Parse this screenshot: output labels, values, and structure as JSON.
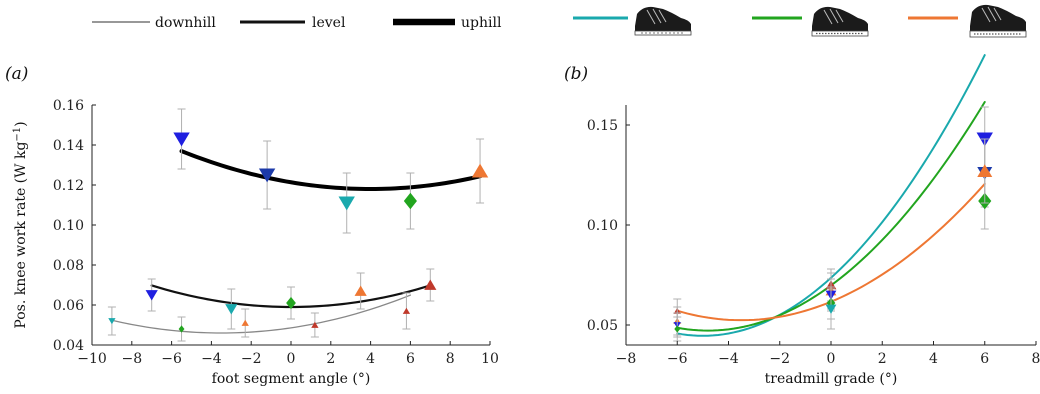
{
  "legend_terrain": [
    {
      "label": "downhill",
      "color": "#777777",
      "width": 1.5
    },
    {
      "label": "level",
      "color": "#111111",
      "width": 3
    },
    {
      "label": "uphill",
      "color": "#000000",
      "width": 6.5
    }
  ],
  "legend_shoes": [
    {
      "color": "#1aa9ad",
      "icon": "shoe-icon"
    },
    {
      "color": "#22a51f",
      "icon": "shoe-icon"
    },
    {
      "color": "#ee7733",
      "icon": "shoe-icon"
    }
  ],
  "chart_data": [
    {
      "panel": "(a)",
      "type": "scatter",
      "xlabel": "foot segment angle (°)",
      "ylabel": "Pos. knee work rate (W kg",
      "ylabel_sup": "−1",
      "ylabel_end": ")",
      "xlim": [
        -10,
        10
      ],
      "ylim": [
        0.04,
        0.16
      ],
      "xticks": [
        -10,
        -8,
        -6,
        -4,
        -2,
        0,
        2,
        4,
        6,
        8,
        10
      ],
      "xtick_labels": [
        "−10",
        "−8",
        "−6",
        "−4",
        "−2",
        "0",
        "2",
        "4",
        "6",
        "8",
        "10"
      ],
      "yticks": [
        0.04,
        0.06,
        0.08,
        0.1,
        0.12,
        0.14,
        0.16
      ],
      "ytick_labels": [
        "0.04",
        "0.06",
        "0.08",
        "0.10",
        "0.12",
        "0.14",
        "0.16"
      ],
      "fits": [
        {
          "terrain": "uphill",
          "x_range": [
            -5.5,
            9.5
          ],
          "coef": [
            0.118,
            4.0,
            0.00021
          ],
          "color": "#000000",
          "width": 4
        },
        {
          "terrain": "level",
          "x_range": [
            -7,
            7
          ],
          "coef": [
            0.059,
            0.0,
            0.00022
          ],
          "color": "#111111",
          "width": 2.2
        },
        {
          "terrain": "downhill",
          "x_range": [
            -9,
            6
          ],
          "coef": [
            0.046,
            -3.5,
            0.00021
          ],
          "color": "#888888",
          "width": 1.3
        }
      ],
      "points": [
        {
          "terrain": "uphill",
          "x": -5.5,
          "y": 0.143,
          "err": 0.015,
          "color": "#1f1fe0",
          "marker": "tri-down",
          "size": 1.0
        },
        {
          "terrain": "uphill",
          "x": -1.2,
          "y": 0.125,
          "err": 0.017,
          "color": "#1c3aa9",
          "marker": "tri-down",
          "size": 1.0
        },
        {
          "terrain": "uphill",
          "x": 2.8,
          "y": 0.111,
          "err": 0.015,
          "color": "#1aa9ad",
          "marker": "tri-down",
          "size": 1.0
        },
        {
          "terrain": "uphill",
          "x": 6.0,
          "y": 0.112,
          "err": 0.014,
          "color": "#22a51f",
          "marker": "diamond",
          "size": 1.0
        },
        {
          "terrain": "uphill",
          "x": 9.5,
          "y": 0.127,
          "err": 0.016,
          "color": "#ee7733",
          "marker": "tri-up",
          "size": 1.0
        },
        {
          "terrain": "level",
          "x": -7.0,
          "y": 0.065,
          "err": 0.008,
          "color": "#1f1fe0",
          "marker": "tri-down",
          "size": 0.7
        },
        {
          "terrain": "level",
          "x": -3.0,
          "y": 0.058,
          "err": 0.01,
          "color": "#1aa9ad",
          "marker": "tri-down",
          "size": 0.7
        },
        {
          "terrain": "level",
          "x": 0.0,
          "y": 0.061,
          "err": 0.008,
          "color": "#22a51f",
          "marker": "diamond",
          "size": 0.7
        },
        {
          "terrain": "level",
          "x": 3.5,
          "y": 0.067,
          "err": 0.009,
          "color": "#ee7733",
          "marker": "tri-up",
          "size": 0.7
        },
        {
          "terrain": "level",
          "x": 7.0,
          "y": 0.07,
          "err": 0.008,
          "color": "#c0392b",
          "marker": "tri-up",
          "size": 0.7
        },
        {
          "terrain": "downhill",
          "x": -9.0,
          "y": 0.052,
          "err": 0.007,
          "color": "#1aa9ad",
          "marker": "tri-down",
          "size": 0.35
        },
        {
          "terrain": "downhill",
          "x": -5.5,
          "y": 0.048,
          "err": 0.006,
          "color": "#22a51f",
          "marker": "diamond",
          "size": 0.35
        },
        {
          "terrain": "downhill",
          "x": -2.3,
          "y": 0.051,
          "err": 0.007,
          "color": "#ee7733",
          "marker": "tri-up",
          "size": 0.35
        },
        {
          "terrain": "downhill",
          "x": 1.2,
          "y": 0.05,
          "err": 0.006,
          "color": "#c0392b",
          "marker": "tri-up",
          "size": 0.35
        },
        {
          "terrain": "downhill",
          "x": 5.8,
          "y": 0.057,
          "err": 0.009,
          "color": "#c0392b",
          "marker": "tri-up",
          "size": 0.35
        }
      ]
    },
    {
      "panel": "(b)",
      "type": "scatter",
      "xlabel": "treadmill grade (°)",
      "ylabel": "",
      "xlim": [
        -8,
        8
      ],
      "ylim": [
        0.04,
        0.16
      ],
      "xticks": [
        -8,
        -6,
        -4,
        -2,
        0,
        2,
        4,
        6,
        8
      ],
      "xtick_labels": [
        "−8",
        "−6",
        "−4",
        "−2",
        "0",
        "2",
        "4",
        "6",
        "8"
      ],
      "yticks": [
        0.05,
        0.1,
        0.15
      ],
      "ytick_labels": [
        "0.05",
        "0.10",
        "0.15"
      ],
      "fits": [
        {
          "x_range": [
            -6,
            6
          ],
          "coef": [
            0.0446,
            -5.0,
            0.00116
          ],
          "color": "#1aa9ad",
          "width": 2
        },
        {
          "x_range": [
            -6,
            6
          ],
          "coef": [
            0.0472,
            -4.8,
            0.00098
          ],
          "color": "#22a51f",
          "width": 2
        },
        {
          "x_range": [
            -6,
            6
          ],
          "coef": [
            0.0524,
            -3.5,
            0.000755
          ],
          "color": "#ee7733",
          "width": 2
        }
      ],
      "points": [
        {
          "x": 6.0,
          "y": 0.143,
          "err": 0.016,
          "color": "#1f1fe0",
          "marker": "tri-down",
          "size": 1.0
        },
        {
          "x": 6.0,
          "y": 0.126,
          "err": 0.017,
          "color": "#1c3aa9",
          "marker": "tri-down",
          "size": 0.9
        },
        {
          "x": 6.0,
          "y": 0.112,
          "err": 0.014,
          "color": "#22a51f",
          "marker": "diamond",
          "size": 1.0
        },
        {
          "x": 6.0,
          "y": 0.127,
          "err": 0.016,
          "color": "#ee7733",
          "marker": "tri-up",
          "size": 0.9
        },
        {
          "x": 0.0,
          "y": 0.07,
          "err": 0.008,
          "color": "#c0392b",
          "marker": "tri-up",
          "size": 0.6
        },
        {
          "x": 0.0,
          "y": 0.067,
          "err": 0.009,
          "color": "#ee7733",
          "marker": "tri-up",
          "size": 0.6
        },
        {
          "x": 0.0,
          "y": 0.065,
          "err": 0.008,
          "color": "#1f1fe0",
          "marker": "tri-down",
          "size": 0.6
        },
        {
          "x": 0.0,
          "y": 0.061,
          "err": 0.008,
          "color": "#22a51f",
          "marker": "diamond",
          "size": 0.6
        },
        {
          "x": 0.0,
          "y": 0.058,
          "err": 0.01,
          "color": "#1aa9ad",
          "marker": "tri-down",
          "size": 0.6
        },
        {
          "x": -6.0,
          "y": 0.057,
          "err": 0.006,
          "color": "#c0392b",
          "marker": "tri-up",
          "size": 0.35
        },
        {
          "x": -6.0,
          "y": 0.052,
          "err": 0.007,
          "color": "#ee7733",
          "marker": "tri-up",
          "size": 0.35
        },
        {
          "x": -6.0,
          "y": 0.05,
          "err": 0.006,
          "color": "#1f1fe0",
          "marker": "tri-down",
          "size": 0.35
        },
        {
          "x": -6.0,
          "y": 0.048,
          "err": 0.006,
          "color": "#22a51f",
          "marker": "diamond",
          "size": 0.35
        }
      ]
    }
  ]
}
